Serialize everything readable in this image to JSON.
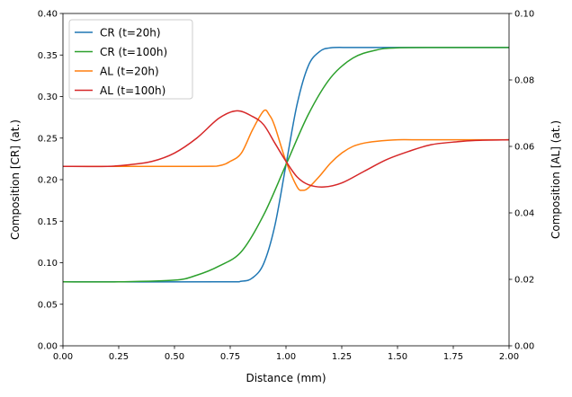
{
  "chart_data": {
    "type": "line",
    "title": "",
    "xlabel": "Distance (mm)",
    "ylabel": "Composition [CR] (at.)",
    "ylabel_right": "Composition [AL] (at.)",
    "xlim": [
      0,
      2
    ],
    "ylim": [
      0,
      0.4
    ],
    "ylim_right": [
      0,
      0.1
    ],
    "xticks": [
      "0.00",
      "0.25",
      "0.50",
      "0.75",
      "1.00",
      "1.25",
      "1.50",
      "1.75",
      "2.00"
    ],
    "yticks": [
      "0.00",
      "0.05",
      "0.10",
      "0.15",
      "0.20",
      "0.25",
      "0.30",
      "0.35",
      "0.40"
    ],
    "yticks_right": [
      "0.00",
      "0.02",
      "0.04",
      "0.06",
      "0.08",
      "0.10"
    ],
    "grid": false,
    "legend_position": "top-left",
    "series": [
      {
        "name": "CR (t=20h)",
        "axis": "left",
        "color": "#1f77b4",
        "x": [
          0,
          0.7,
          0.8,
          0.85,
          0.9,
          0.95,
          1.0,
          1.05,
          1.1,
          1.15,
          1.2,
          1.3,
          1.5,
          2.0
        ],
        "y": [
          0.077,
          0.077,
          0.0777,
          0.0818,
          0.099,
          0.1446,
          0.218,
          0.291,
          0.337,
          0.354,
          0.3587,
          0.359,
          0.359,
          0.359
        ]
      },
      {
        "name": "CR (t=100h)",
        "axis": "left",
        "color": "#2ca02c",
        "x": [
          0,
          0.25,
          0.5,
          0.6,
          0.7,
          0.8,
          0.9,
          1.0,
          1.1,
          1.2,
          1.3,
          1.4,
          1.5,
          1.75,
          2.0
        ],
        "y": [
          0.077,
          0.077,
          0.079,
          0.085,
          0.096,
          0.1134,
          0.1576,
          0.218,
          0.2784,
          0.3226,
          0.3463,
          0.3557,
          0.3587,
          0.359,
          0.359
        ]
      },
      {
        "name": "AL (t=20h)",
        "axis": "right",
        "color": "#ff7f0e",
        "x": [
          0,
          0.6,
          0.7,
          0.75,
          0.8,
          0.85,
          0.9,
          0.925,
          0.95,
          1.0,
          1.05,
          1.075,
          1.1,
          1.15,
          1.2,
          1.25,
          1.3,
          1.35,
          1.4,
          1.5,
          1.6,
          2.0
        ],
        "y": [
          0.054,
          0.054,
          0.0542,
          0.0555,
          0.058,
          0.065,
          0.0707,
          0.0695,
          0.066,
          0.0555,
          0.0478,
          0.0468,
          0.0475,
          0.051,
          0.055,
          0.058,
          0.06,
          0.061,
          0.0615,
          0.062,
          0.062,
          0.062
        ]
      },
      {
        "name": "AL (t=100h)",
        "axis": "right",
        "color": "#d62728",
        "x": [
          0,
          0.2,
          0.3,
          0.4,
          0.5,
          0.6,
          0.7,
          0.78,
          0.85,
          0.9,
          0.95,
          1.0,
          1.05,
          1.1,
          1.17,
          1.25,
          1.35,
          1.45,
          1.55,
          1.65,
          1.75,
          1.85,
          2.0
        ],
        "y": [
          0.054,
          0.054,
          0.0545,
          0.0555,
          0.058,
          0.0625,
          0.0685,
          0.0707,
          0.069,
          0.0665,
          0.061,
          0.0555,
          0.0508,
          0.0485,
          0.0478,
          0.049,
          0.0525,
          0.056,
          0.0585,
          0.0605,
          0.0613,
          0.0618,
          0.062
        ]
      }
    ]
  }
}
